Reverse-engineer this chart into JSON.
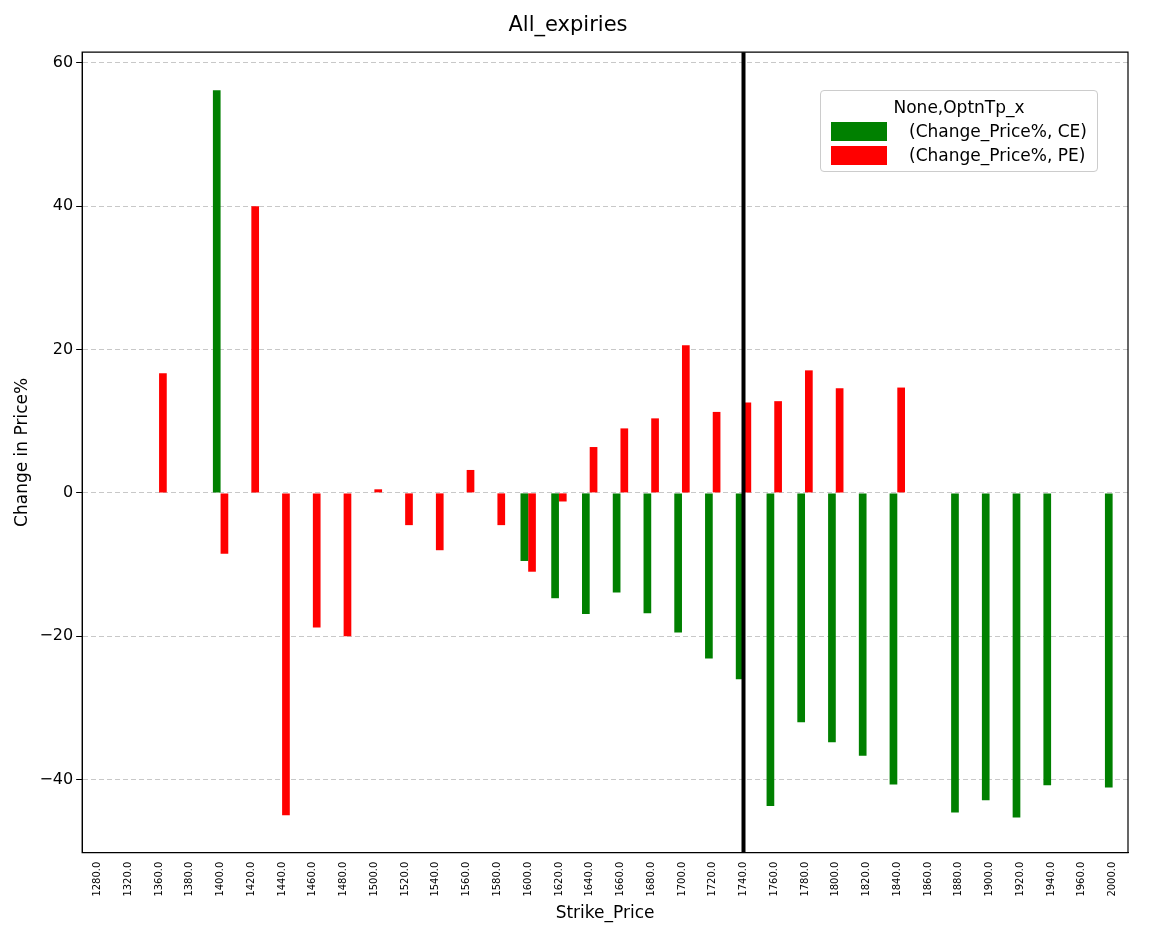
{
  "chart_data": {
    "type": "bar",
    "title": "All_expiries",
    "xlabel": "Strike_Price",
    "ylabel": "Change in Price%",
    "legend_title": "None,OptnTp_x",
    "categories": [
      "1280.0",
      "1320.0",
      "1360.0",
      "1380.0",
      "1400.0",
      "1420.0",
      "1440.0",
      "1460.0",
      "1480.0",
      "1500.0",
      "1520.0",
      "1540.0",
      "1560.0",
      "1580.0",
      "1600.0",
      "1620.0",
      "1640.0",
      "1660.0",
      "1680.0",
      "1700.0",
      "1720.0",
      "1740.0",
      "1760.0",
      "1780.0",
      "1800.0",
      "1820.0",
      "1840.0",
      "1860.0",
      "1880.0",
      "1900.0",
      "1920.0",
      "1940.0",
      "1960.0",
      "2000.0"
    ],
    "series": [
      {
        "name": "(Change_Price%, CE)",
        "color": "#008000",
        "values": [
          null,
          null,
          null,
          null,
          56.2,
          null,
          null,
          null,
          null,
          null,
          null,
          null,
          null,
          null,
          -9.5,
          -14.7,
          -16.9,
          -13.9,
          -16.8,
          -19.5,
          -23.1,
          -26,
          -43.7,
          -32,
          -34.8,
          -36.7,
          -40.7,
          null,
          -44.6,
          -42.9,
          -45.3,
          -40.8,
          null,
          -41.1
        ]
      },
      {
        "name": "(Change_Price%, PE)",
        "color": "#ff0000",
        "values": [
          null,
          null,
          16.7,
          null,
          -8.5,
          40,
          -45,
          -18.8,
          -20,
          0.5,
          -4.5,
          -8,
          3.2,
          -4.5,
          -11,
          -1.2,
          6.4,
          9,
          10.4,
          20.6,
          11.3,
          12.6,
          12.8,
          17.1,
          14.6,
          null,
          14.7,
          null,
          null,
          null,
          null,
          null,
          null,
          null
        ]
      }
    ],
    "ylim": [
      -50.2,
      61.5
    ],
    "yticks": [
      -40,
      -20,
      0,
      20,
      40,
      60
    ],
    "grid": "y",
    "legend": "top right",
    "ref_lines": [
      {
        "axis": "x",
        "value": "1740.0",
        "color": "#000000"
      }
    ]
  }
}
